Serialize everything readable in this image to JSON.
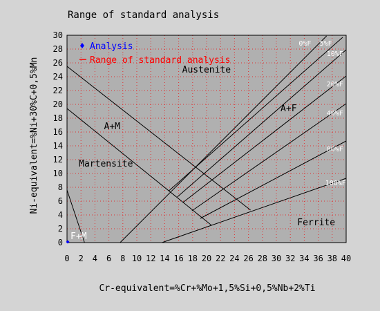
{
  "chart_data": {
    "type": "line",
    "title": "Range of standard analysis",
    "xlabel": "Cr-equivalent=%Cr+%Mo+1,5%Si+0,5%Nb+2%Ti",
    "ylabel": "Ni-equivalent=%Ni+30%C+0,5%Mn",
    "xlim": [
      0,
      40
    ],
    "ylim": [
      0,
      30
    ],
    "x_ticks": [
      0,
      2,
      4,
      6,
      8,
      10,
      12,
      14,
      16,
      18,
      20,
      22,
      24,
      26,
      28,
      30,
      32,
      34,
      36,
      38,
      40
    ],
    "y_ticks": [
      0,
      2,
      4,
      6,
      8,
      10,
      12,
      14,
      16,
      18,
      20,
      22,
      24,
      26,
      28,
      30
    ],
    "grid": true,
    "legend": {
      "placement": "top-left",
      "entries": [
        {
          "label": "Analysis",
          "color": "#0000ff",
          "marker": "diamond"
        },
        {
          "label": "Range of standard analysis",
          "color": "#ff0000",
          "marker": "line"
        }
      ]
    },
    "series": [
      {
        "name": "Analysis",
        "color": "#0000ff",
        "points": [
          [
            0.1,
            0.1
          ]
        ]
      }
    ],
    "boundary_lines": [
      {
        "id": "martensite-boundary",
        "points": [
          [
            0,
            25.5
          ],
          [
            26.3,
            4.7
          ]
        ]
      },
      {
        "id": "am-boundary",
        "points": [
          [
            0,
            19.4
          ],
          [
            20.7,
            2.5
          ]
        ]
      },
      {
        "id": "fm-boundary",
        "points": [
          [
            0,
            7.6
          ],
          [
            2.5,
            0
          ]
        ]
      },
      {
        "id": "ferrite-0",
        "points": [
          [
            7.6,
            0
          ],
          [
            37.2,
            29.9
          ]
        ]
      },
      {
        "id": "ferrite-5",
        "points": [
          [
            14.6,
            7.5
          ],
          [
            39.5,
            29.7
          ]
        ]
      },
      {
        "id": "ferrite-10",
        "points": [
          [
            15.8,
            6.6
          ],
          [
            40,
            27.9
          ]
        ]
      },
      {
        "id": "ferrite-20",
        "points": [
          [
            16.6,
            5.8
          ],
          [
            40,
            24.1
          ]
        ]
      },
      {
        "id": "ferrite-40",
        "points": [
          [
            17.9,
            4.6
          ],
          [
            40,
            20.1
          ]
        ]
      },
      {
        "id": "ferrite-80",
        "points": [
          [
            19.1,
            3.5
          ],
          [
            40,
            14.7
          ]
        ]
      },
      {
        "id": "ferrite-100",
        "points": [
          [
            13.6,
            0
          ],
          [
            40,
            9.3
          ]
        ]
      }
    ],
    "annotations": [
      {
        "text": "0%F",
        "x": 33.2,
        "y": 28.5,
        "color": "#ffffff"
      },
      {
        "text": "5%F",
        "x": 36.2,
        "y": 28.5,
        "color": "#ffffff"
      },
      {
        "text": "10%F",
        "x": 37.2,
        "y": 27.0,
        "color": "#ffffff"
      },
      {
        "text": "20%F",
        "x": 37.2,
        "y": 22.6,
        "color": "#ffffff"
      },
      {
        "text": "40%F",
        "x": 37.2,
        "y": 18.4,
        "color": "#ffffff"
      },
      {
        "text": "80%F",
        "x": 37.2,
        "y": 13.2,
        "color": "#ffffff"
      },
      {
        "text": "100%F",
        "x": 37.0,
        "y": 8.3,
        "color": "#ffffff"
      },
      {
        "text": "Austenite",
        "x": 16.5,
        "y": 24.6,
        "color": "#000000"
      },
      {
        "text": "A+F",
        "x": 30.6,
        "y": 19.0,
        "color": "#000000"
      },
      {
        "text": "A+M",
        "x": 5.3,
        "y": 16.4,
        "color": "#000000"
      },
      {
        "text": "Martensite",
        "x": 1.7,
        "y": 11.0,
        "color": "#000000"
      },
      {
        "text": "Ferrite",
        "x": 33.0,
        "y": 2.5,
        "color": "#000000"
      },
      {
        "text": "F+M",
        "x": 0.5,
        "y": 0.5,
        "color": "#ffffff"
      }
    ]
  },
  "colors": {
    "page_background": "#d4d4d4",
    "plot_background": "#b0b0b0",
    "grid": "#e03030",
    "boundary": "#000000"
  }
}
